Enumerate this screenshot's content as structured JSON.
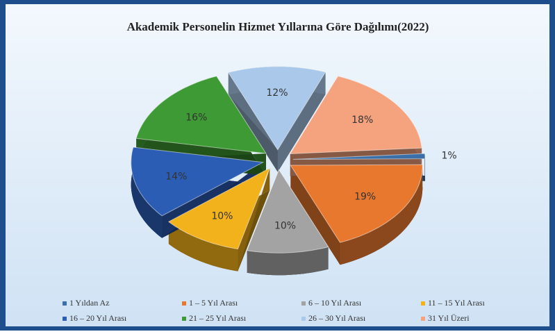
{
  "chart_data": {
    "type": "pie3d",
    "title": "Akademik Personelin Hizmet Yıllarına  Göre Dağılımı(2022)",
    "categories": [
      "1 Yıldan Az",
      "1 – 5 Yıl Arası",
      "6 – 10 Yıl Arası",
      "11 – 15 Yıl Arası",
      "16 – 20 Yıl Arası",
      "21 – 25 Yıl Arası",
      "26 – 30 Yıl Arası",
      "31 Yıl Üzeri"
    ],
    "values": [
      1,
      19,
      10,
      10,
      14,
      16,
      12,
      18
    ],
    "value_labels": [
      "1%",
      "19%",
      "10%",
      "10%",
      "14%",
      "16%",
      "12%",
      "18%"
    ],
    "colors": [
      "#3a6fa8",
      "#e9782f",
      "#a3a3a3",
      "#f2b21c",
      "#2c5db4",
      "#3e9a34",
      "#a9c8ea",
      "#f5a37f"
    ],
    "legend": "bottom"
  }
}
